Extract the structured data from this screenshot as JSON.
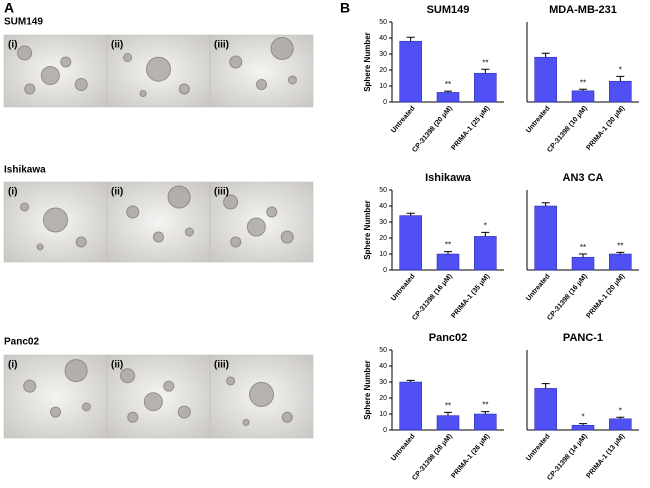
{
  "panel_a": {
    "label": "A",
    "rows": [
      {
        "title": "SUM149",
        "images": [
          "(i)",
          "(ii)",
          "(iii)"
        ]
      },
      {
        "title": "Ishikawa",
        "images": [
          "(i)",
          "(ii)",
          "(iii)"
        ]
      },
      {
        "title": "Panc02",
        "images": [
          "(i)",
          "(ii)",
          "(iii)"
        ]
      }
    ]
  },
  "panel_b_label": "B",
  "chart_data": [
    {
      "type": "bar",
      "title": "SUM149",
      "y_label": "Sphere Number",
      "categories": [
        "Untreated",
        "CP-31398 (20 μM)",
        "PRIMA-1 (25 μM)"
      ],
      "values": [
        38,
        6,
        18
      ],
      "errors": [
        2.5,
        0.8,
        2.5
      ],
      "significance": [
        null,
        "**",
        "**"
      ],
      "ylim": [
        0,
        50
      ],
      "yticks": [
        0,
        10,
        20,
        30,
        40,
        50
      ],
      "color": "#5050f5"
    },
    {
      "type": "bar",
      "title": "MDA-MB-231",
      "categories": [
        "Untreated",
        "CP-31398 (10 μM)",
        "PRIMA-1 (30 μM)"
      ],
      "values": [
        28,
        7,
        13
      ],
      "errors": [
        2.5,
        1,
        3
      ],
      "significance": [
        null,
        "**",
        "*"
      ],
      "ylim": [
        0,
        50
      ],
      "color": "#5050f5"
    },
    {
      "type": "bar",
      "title": "Ishikawa",
      "y_label": "Sphere Number",
      "categories": [
        "Untreated",
        "CP-31398 (16 μM)",
        "PRIMA-1 (35 μM)"
      ],
      "values": [
        34,
        10,
        21
      ],
      "errors": [
        1.5,
        1.5,
        2.5
      ],
      "significance": [
        null,
        "**",
        "*"
      ],
      "ylim": [
        0,
        50
      ],
      "yticks": [
        0,
        10,
        20,
        30,
        40,
        50
      ],
      "color": "#5050f5"
    },
    {
      "type": "bar",
      "title": "AN3 CA",
      "categories": [
        "Untreated",
        "CP-31398 (16 μM)",
        "PRIMA-1 (20 μM)"
      ],
      "values": [
        40,
        8,
        10
      ],
      "errors": [
        2,
        2,
        1
      ],
      "significance": [
        null,
        "**",
        "**"
      ],
      "ylim": [
        0,
        50
      ],
      "color": "#5050f5"
    },
    {
      "type": "bar",
      "title": "Panc02",
      "y_label": "Sphere Number",
      "categories": [
        "Untreated",
        "CP-31398 (28 μM)",
        "PRIMA-1 (26 μM)"
      ],
      "values": [
        30,
        9,
        10
      ],
      "errors": [
        1,
        2,
        1.5
      ],
      "significance": [
        null,
        "**",
        "**"
      ],
      "ylim": [
        0,
        50
      ],
      "yticks": [
        0,
        10,
        20,
        30,
        40,
        50
      ],
      "color": "#5050f5"
    },
    {
      "type": "bar",
      "title": "PANC-1",
      "categories": [
        "Untreated",
        "CP-31398 (14 μM)",
        "PRIMA-1 (13 μM)"
      ],
      "values": [
        26,
        3,
        7
      ],
      "errors": [
        3,
        1,
        1
      ],
      "significance": [
        null,
        "*",
        "*"
      ],
      "ylim": [
        0,
        50
      ],
      "color": "#5050f5"
    }
  ]
}
